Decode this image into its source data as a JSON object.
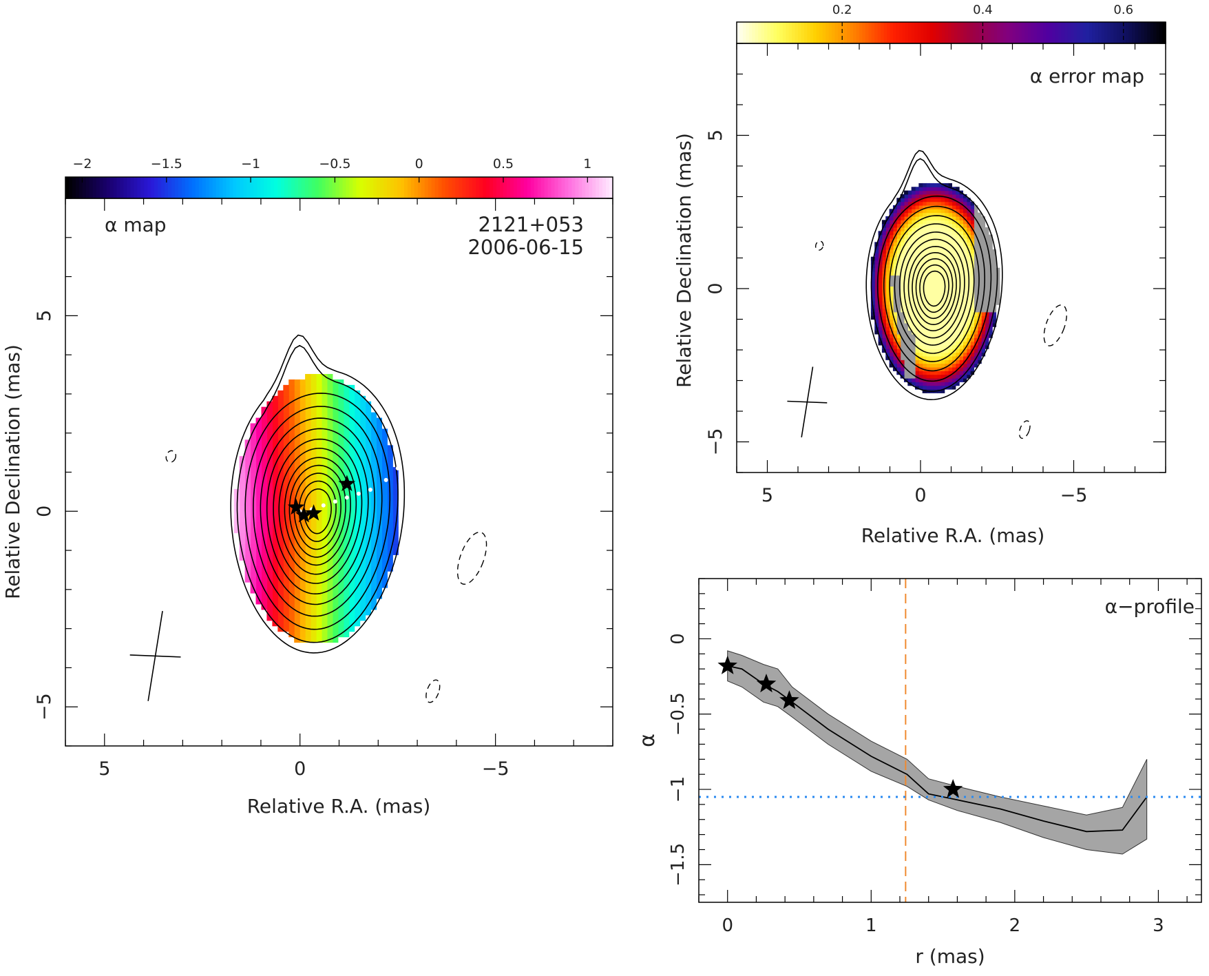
{
  "chart_data": [
    {
      "type": "heatmap",
      "panel": "alpha-map",
      "labels": {
        "panel_label": "α map",
        "source": "2121+053",
        "date": "2006-06-15"
      },
      "xlabel": "Relative R.A. (mas)",
      "ylabel": "Relative Declination (mas)",
      "xlim": [
        6,
        -8
      ],
      "ylim": [
        -6,
        8
      ],
      "xticks": [
        5,
        0,
        -5
      ],
      "yticks": [
        5,
        0,
        -5
      ],
      "colorbar": {
        "range": [
          -2.1,
          1.15
        ],
        "ticks": [
          -2,
          -1.5,
          -1,
          -0.5,
          0,
          0.5,
          1
        ],
        "palette": [
          "#000000",
          "#1a0070",
          "#2a18d8",
          "#0070ff",
          "#00c8ff",
          "#00ffe0",
          "#40ff60",
          "#d8ff00",
          "#ffc000",
          "#ff5000",
          "#ff0020",
          "#ff00a0",
          "#ff70e0",
          "#ffe8ff"
        ]
      },
      "stars": [
        {
          "x": 0.1,
          "y": 0.1
        },
        {
          "x": -0.1,
          "y": -0.1
        },
        {
          "x": -0.35,
          "y": -0.05
        },
        {
          "x": -1.2,
          "y": 0.7
        }
      ],
      "ridge_points": [
        {
          "x": 0.0,
          "y": 0.0
        },
        {
          "x": -0.3,
          "y": 0.05
        },
        {
          "x": -0.6,
          "y": 0.15
        },
        {
          "x": -0.9,
          "y": 0.25
        },
        {
          "x": -1.2,
          "y": 0.35
        },
        {
          "x": -1.5,
          "y": 0.45
        },
        {
          "x": -1.8,
          "y": 0.55
        },
        {
          "x": -2.2,
          "y": 0.8
        },
        {
          "x": -2.5,
          "y": 1.1
        },
        {
          "x": -2.7,
          "y": 1.4
        }
      ],
      "beam": {
        "x": 3.7,
        "y": -3.7,
        "major": 2.3,
        "minor": 1.3
      }
    },
    {
      "type": "heatmap",
      "panel": "alpha-error-map",
      "labels": {
        "panel_label": "α error map"
      },
      "xlabel": "Relative R.A. (mas)",
      "ylabel": "Relative Declination (mas)",
      "xlim": [
        6,
        -8
      ],
      "ylim": [
        -6,
        8
      ],
      "xticks": [
        5,
        0,
        -5
      ],
      "yticks": [
        5,
        0,
        -5
      ],
      "colorbar": {
        "range": [
          0.05,
          0.66
        ],
        "ticks": [
          0.2,
          0.4,
          0.6
        ],
        "palette": [
          "#fffff0",
          "#ffff60",
          "#ffd000",
          "#ff8000",
          "#ff2000",
          "#e00000",
          "#a00040",
          "#800080",
          "#5000a0",
          "#2020a0",
          "#101060",
          "#000000"
        ]
      },
      "beam": {
        "x": 3.7,
        "y": -3.7,
        "major": 2.3,
        "minor": 1.3
      }
    },
    {
      "type": "line",
      "panel": "alpha-profile",
      "labels": {
        "panel_label": "α−profile"
      },
      "xlabel": "r (mas)",
      "ylabel": "α",
      "xlim": [
        -0.2,
        3.3
      ],
      "ylim": [
        -1.75,
        0.4
      ],
      "xticks": [
        0,
        1,
        2,
        3
      ],
      "yticks": [
        0,
        -0.5,
        -1,
        -1.5
      ],
      "series": [
        {
          "x": [
            0.0,
            0.1,
            0.25,
            0.35,
            0.45,
            0.7,
            1.0,
            1.25,
            1.4,
            1.6,
            1.9,
            2.2,
            2.5,
            2.75,
            2.92
          ],
          "values": [
            -0.18,
            -0.2,
            -0.3,
            -0.35,
            -0.42,
            -0.6,
            -0.78,
            -0.9,
            -1.03,
            -1.07,
            -1.13,
            -1.21,
            -1.28,
            -1.27,
            -1.05
          ],
          "lower": [
            -0.28,
            -0.32,
            -0.42,
            -0.45,
            -0.52,
            -0.7,
            -0.88,
            -0.98,
            -1.07,
            -1.14,
            -1.22,
            -1.32,
            -1.4,
            -1.43,
            -1.33
          ],
          "upper": [
            -0.08,
            -0.11,
            -0.17,
            -0.2,
            -0.32,
            -0.5,
            -0.68,
            -0.8,
            -0.93,
            -0.98,
            -1.05,
            -1.11,
            -1.17,
            -1.12,
            -0.8
          ]
        }
      ],
      "stars": [
        {
          "x": 0.0,
          "y": -0.18
        },
        {
          "x": 0.27,
          "y": -0.3
        },
        {
          "x": 0.43,
          "y": -0.41
        },
        {
          "x": 1.57,
          "y": -1.0
        }
      ],
      "vline": {
        "x": 1.24,
        "color": "#f08a30"
      },
      "hline": {
        "y": -1.05,
        "color": "#2a8af0"
      }
    }
  ]
}
